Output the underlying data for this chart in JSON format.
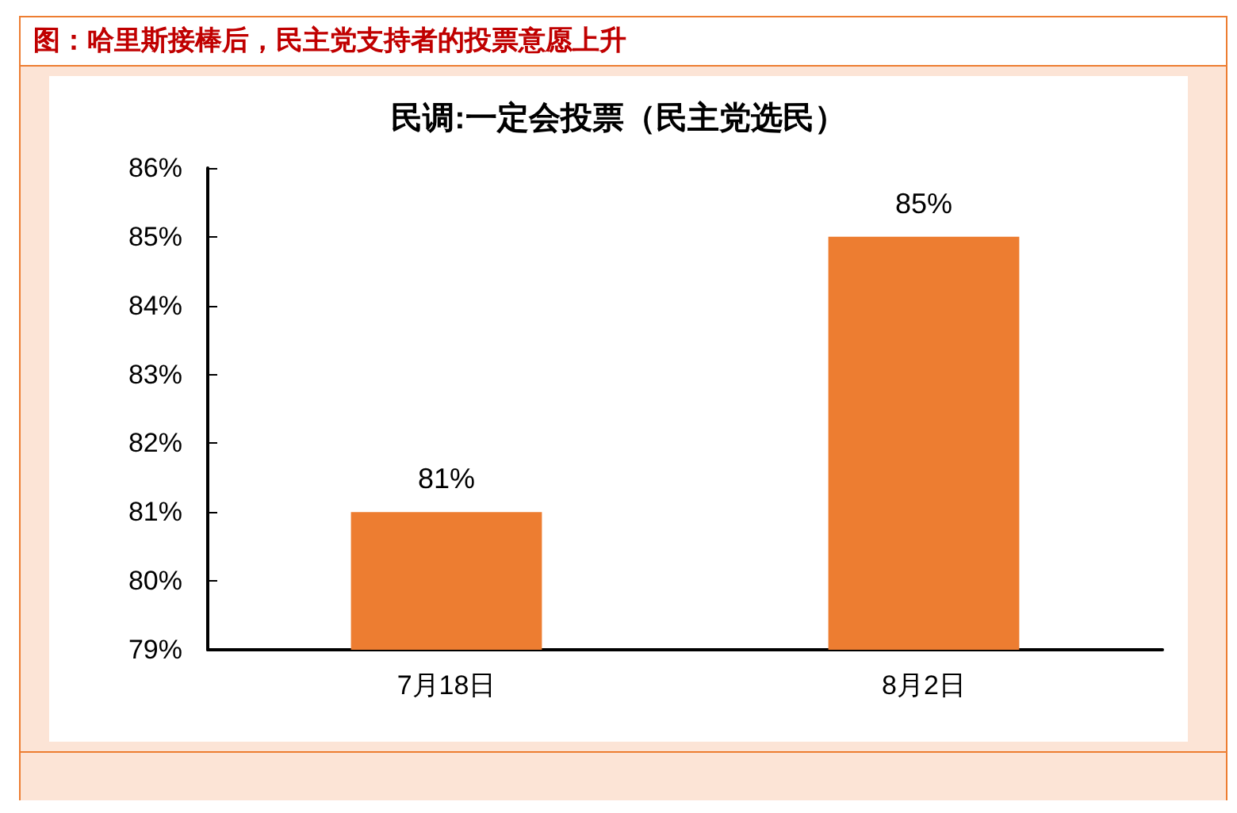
{
  "chart_data": {
    "type": "bar",
    "title": "图：哈里斯接棒后，民主党支持者的投票意愿上升",
    "subtitle": "民调:一定会投票（民主党选民）",
    "categories": [
      "7月18日",
      "8月2日"
    ],
    "values": [
      81,
      85
    ],
    "color": "#ed7d31",
    "value_labels": [
      "81%",
      "85%"
    ],
    "ylim": [
      79,
      86
    ],
    "yticks": [
      {
        "value": 79,
        "label": "79%"
      },
      {
        "value": 80,
        "label": "80%"
      },
      {
        "value": 81,
        "label": "81%"
      },
      {
        "value": 82,
        "label": "82%"
      },
      {
        "value": 83,
        "label": "83%"
      },
      {
        "value": 84,
        "label": "84%"
      },
      {
        "value": 85,
        "label": "85%"
      },
      {
        "value": 86,
        "label": "86%"
      }
    ],
    "grid": false
  }
}
